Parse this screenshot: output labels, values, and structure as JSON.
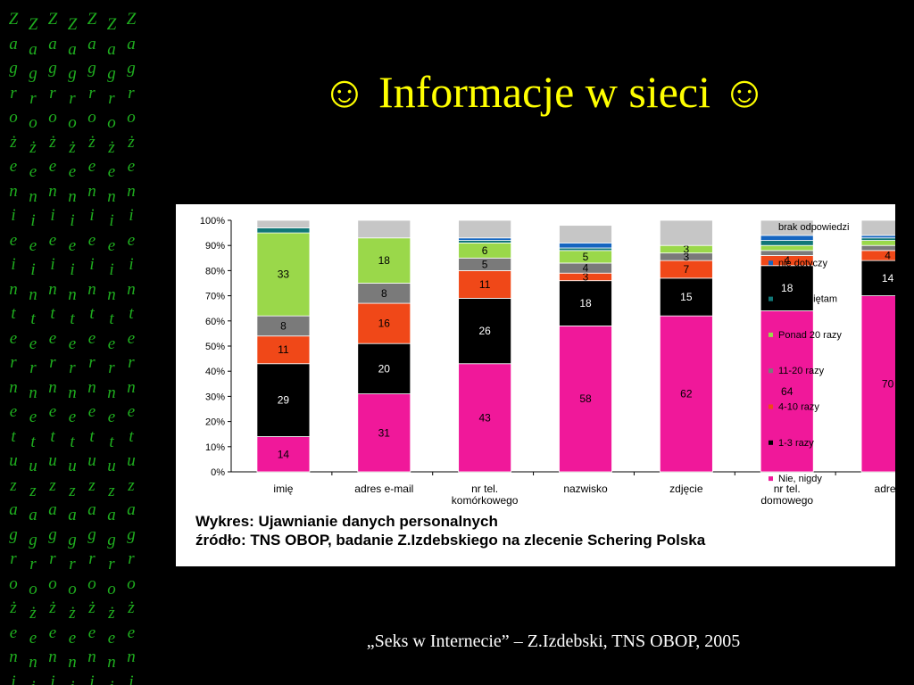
{
  "slide": {
    "title": "☺ Informacje w sieci ☺",
    "source": "„Seks w Internecie” – Z.Izdebski, TNS OBOP, 2005",
    "decoration": {
      "word": "Zagrożenie internetu",
      "columns": 7,
      "column_text": "Zagrożenieinternetuzagrożeni",
      "color": "#1fae1f"
    }
  },
  "caption": {
    "line1": "Wykres: Ujawnianie danych personalnych",
    "line2": "źródło: TNS OBOP, badanie Z.Izdebskiego na zlecenie Schering Polska"
  },
  "chart_data": {
    "type": "bar",
    "stacked": true,
    "categories": [
      [
        "imię"
      ],
      [
        "adres e-mail"
      ],
      [
        "nr tel.",
        "komórkowego"
      ],
      [
        "nazwisko"
      ],
      [
        "zdjęcie"
      ],
      [
        "nr tel.",
        "domowego"
      ],
      [
        "adres"
      ]
    ],
    "ylim": [
      0,
      100
    ],
    "yticks": [
      "0%",
      "10%",
      "20%",
      "30%",
      "40%",
      "50%",
      "60%",
      "70%",
      "80%",
      "90%",
      "100%"
    ],
    "grid": false,
    "legend_position": "right",
    "series": [
      {
        "name": "Nie, nigdy",
        "color": "#f0189a",
        "label_color": "#000000",
        "values": [
          14,
          31,
          43,
          58,
          62,
          64,
          70
        ]
      },
      {
        "name": "1-3 razy",
        "color": "#000000",
        "label_color": "#ffffff",
        "values": [
          29,
          20,
          26,
          18,
          15,
          18,
          14
        ]
      },
      {
        "name": "4-10 razy",
        "color": "#f04818",
        "label_color": "#000000",
        "values": [
          11,
          16,
          11,
          3,
          7,
          4,
          4
        ]
      },
      {
        "name": "11-20 razy",
        "color": "#7a7a7a",
        "label_color": "#000000",
        "values": [
          8,
          8,
          5,
          4,
          3,
          2,
          2
        ]
      },
      {
        "name": "Ponad 20 razy",
        "color": "#9ad84a",
        "label_color": "#000000",
        "values": [
          33,
          18,
          6,
          5,
          3,
          2,
          2
        ]
      },
      {
        "name": "nie pamiętam",
        "color": "#117777",
        "label_color": "#000000",
        "values": [
          2,
          0,
          1,
          1,
          0,
          2,
          1
        ]
      },
      {
        "name": "nie dotyczy",
        "color": "#1565c0",
        "label_color": "#000000",
        "values": [
          0,
          0,
          1,
          2,
          0,
          2,
          1
        ]
      },
      {
        "name": "brak odpowiedzi",
        "color": "#c6c6c6",
        "label_color": "#000000",
        "values": [
          3,
          7,
          7,
          7,
          10,
          6,
          6
        ]
      }
    ]
  }
}
